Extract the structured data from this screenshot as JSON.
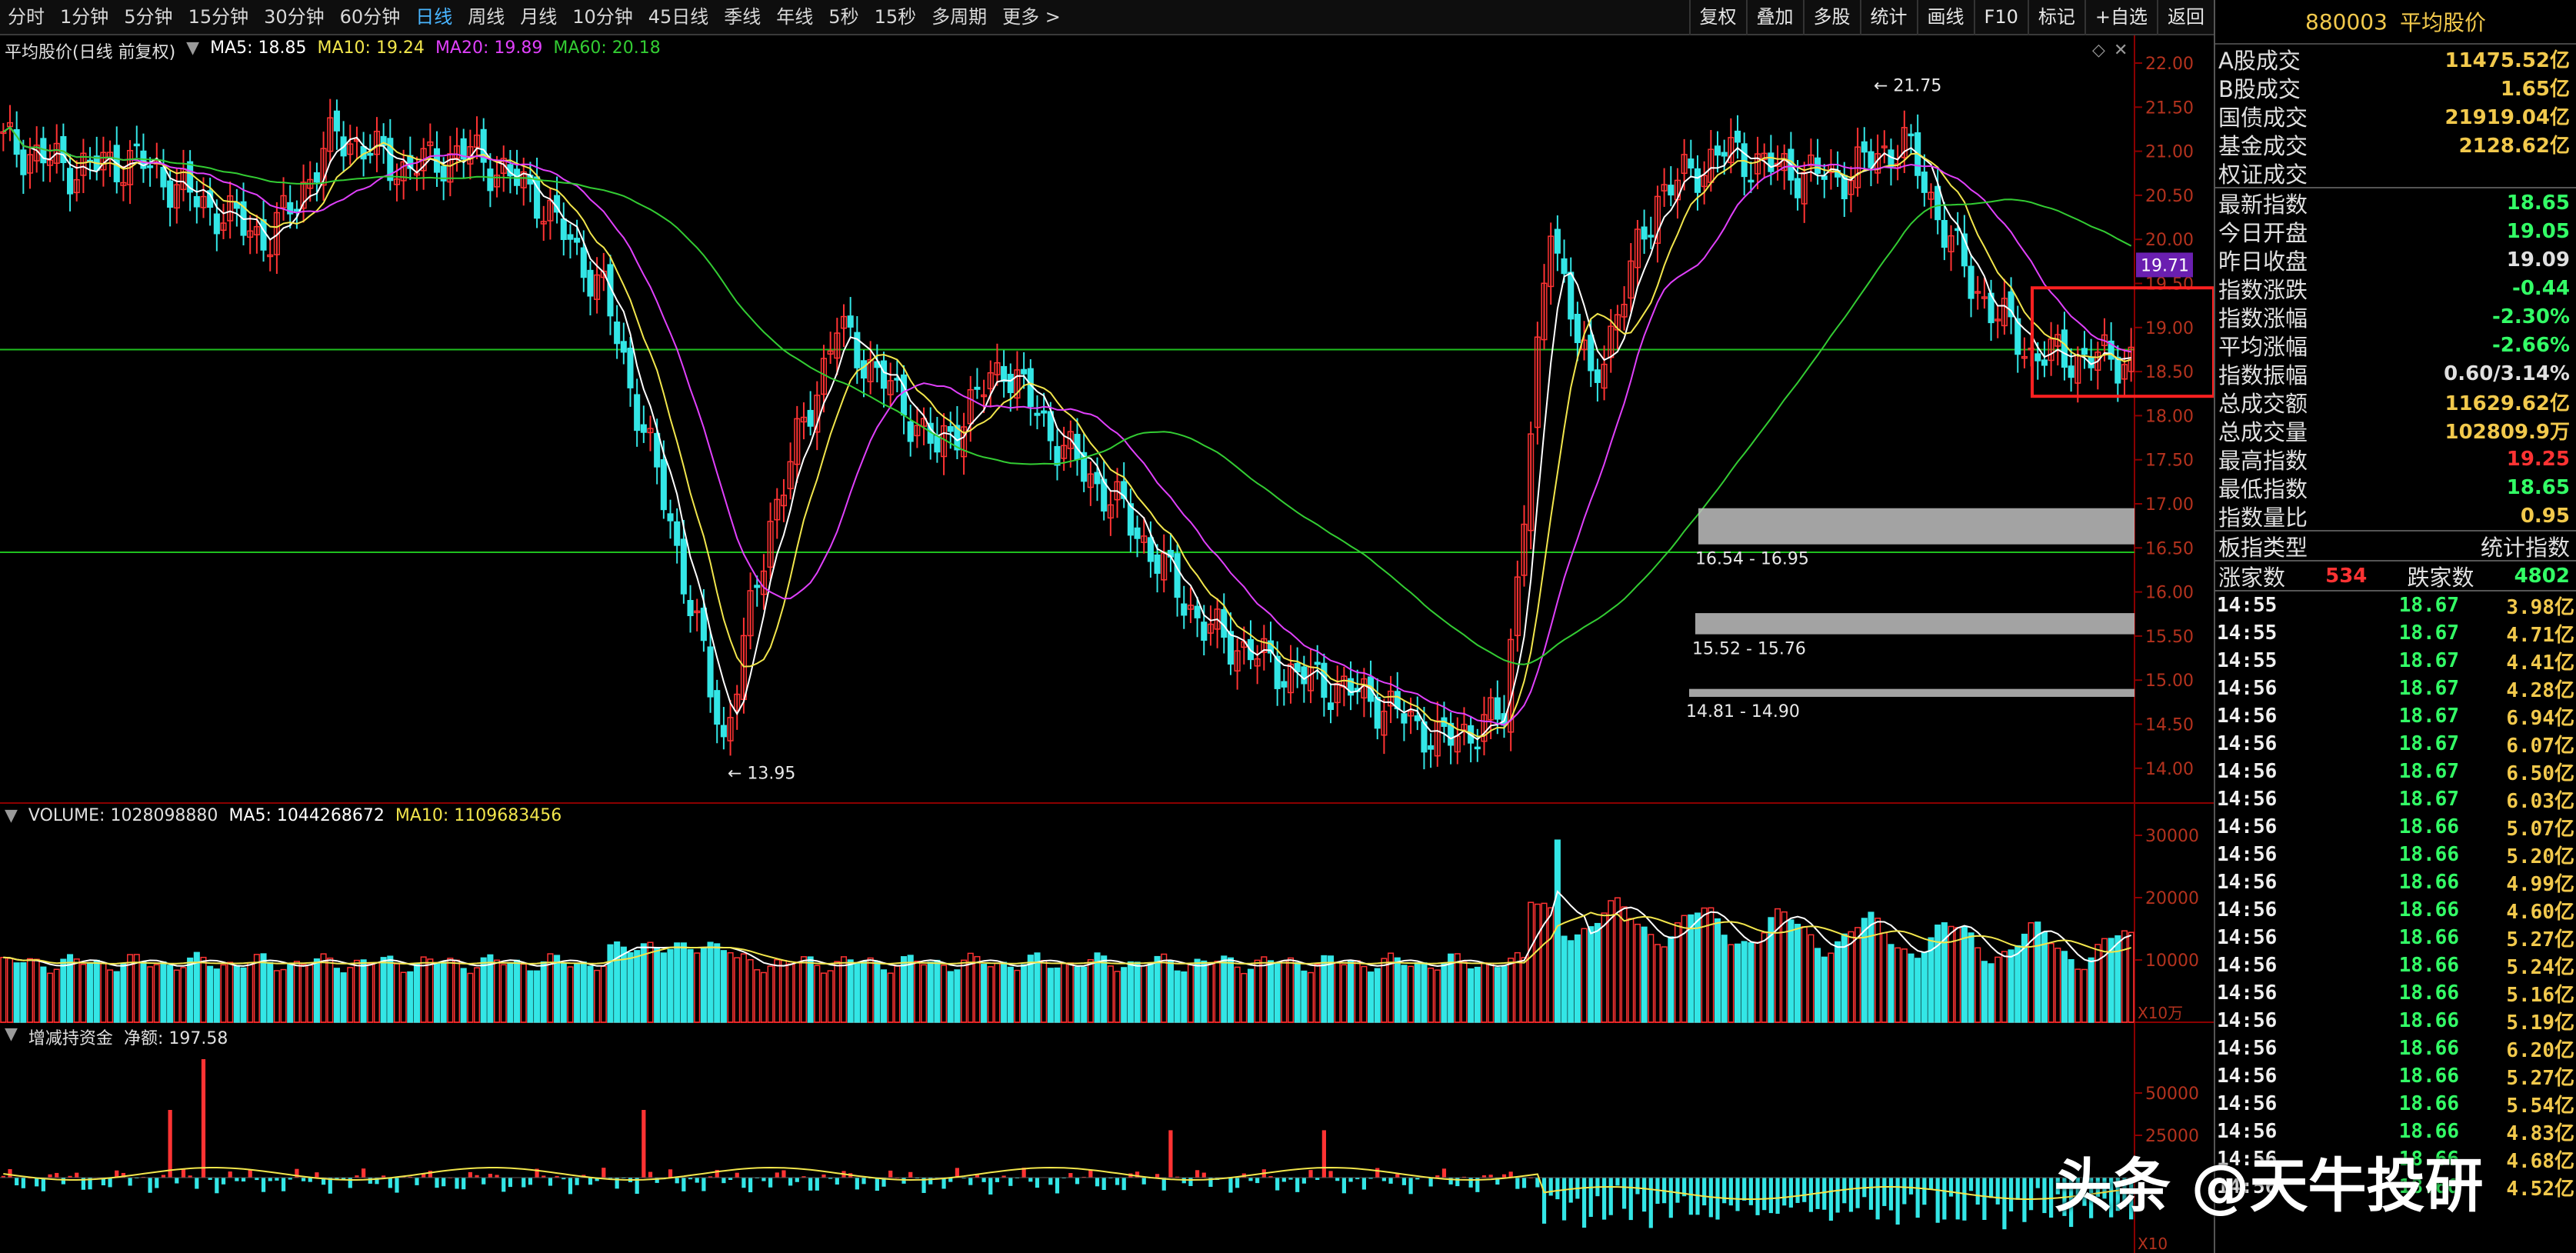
{
  "toolbar": {
    "periods": [
      "分时",
      "1分钟",
      "5分钟",
      "15分钟",
      "30分钟",
      "60分钟",
      "日线",
      "周线",
      "月线",
      "10分钟",
      "45日线",
      "季线",
      "年线",
      "5秒",
      "15秒",
      "多周期",
      "更多 >"
    ],
    "active_period": "日线",
    "right_buttons": [
      "复权",
      "叠加",
      "多股",
      "统计",
      "画线",
      "F10",
      "标记",
      "+自选",
      "返回"
    ]
  },
  "chart": {
    "price_legend": {
      "title": "平均股价(日线 前复权)",
      "ma5": "MA5: 18.85",
      "ma10": "MA10: 19.24",
      "ma20": "MA20: 19.89",
      "ma60": "MA60: 20.18"
    },
    "volume_legend": {
      "volume": "VOLUME: 1028098880",
      "ma5": "MA5: 1044268672",
      "ma10": "MA10: 1109683456"
    },
    "fund_legend": {
      "name": "增减持资金",
      "net": "净额: 197.58"
    },
    "price_axis": [
      "22.00",
      "21.50",
      "21.00",
      "20.50",
      "20.00",
      "19.50",
      "19.00",
      "18.50",
      "18.00",
      "17.50",
      "17.00",
      "16.50",
      "16.00",
      "15.50",
      "15.00",
      "14.50",
      "14.00"
    ],
    "current_price_tag": "19.71",
    "high_label": "21.75",
    "low_label": "13.95",
    "gap_labels": [
      "16.54 - 16.95",
      "15.52 - 15.76",
      "14.81 - 14.90"
    ],
    "volume_axis": [
      "30000",
      "20000",
      "10000"
    ],
    "volume_unit": "X10万",
    "fund_axis": [
      "50000",
      "25000"
    ],
    "fund_unit": "X10",
    "colors": {
      "up": "#ff3333",
      "down": "#33e6e6",
      "ma5": "#ffffff",
      "ma10": "#f2e64c",
      "ma20": "#e040fb",
      "ma60": "#33cc33",
      "grid": "#8b0000",
      "hline": "#1fbf1f"
    }
  },
  "side": {
    "code": "880003",
    "name": "平均股价",
    "stats": [
      {
        "k": "A股成交",
        "v": "11475.52亿",
        "c": "#f2c94c"
      },
      {
        "k": "B股成交",
        "v": "1.65亿",
        "c": "#f2c94c"
      },
      {
        "k": "国债成交",
        "v": "21919.04亿",
        "c": "#f2c94c"
      },
      {
        "k": "基金成交",
        "v": "2128.62亿",
        "c": "#f2c94c"
      },
      {
        "k": "权证成交",
        "v": "",
        "c": "#f2c94c"
      }
    ],
    "index": [
      {
        "k": "最新指数",
        "v": "18.65",
        "c": "#33ff66"
      },
      {
        "k": "今日开盘",
        "v": "19.05",
        "c": "#33ff66"
      },
      {
        "k": "昨日收盘",
        "v": "19.09",
        "c": "#e0e0e0"
      },
      {
        "k": "指数涨跌",
        "v": "-0.44",
        "c": "#33ff66"
      },
      {
        "k": "指数涨幅",
        "v": "-2.30%",
        "c": "#33ff66"
      },
      {
        "k": "平均涨幅",
        "v": "-2.66%",
        "c": "#33ff66"
      },
      {
        "k": "指数振幅",
        "v": "0.60/3.14%",
        "c": "#e0e0e0"
      },
      {
        "k": "总成交额",
        "v": "11629.62亿",
        "c": "#f2c94c"
      },
      {
        "k": "总成交量",
        "v": "102809.9万",
        "c": "#f2c94c"
      },
      {
        "k": "最高指数",
        "v": "19.25",
        "c": "#ff3333"
      },
      {
        "k": "最低指数",
        "v": "18.65",
        "c": "#33ff66"
      },
      {
        "k": "指数量比",
        "v": "0.95",
        "c": "#f2c94c"
      }
    ],
    "board_type": {
      "k": "板指类型",
      "v": "统计指数"
    },
    "breadth": {
      "up_label": "涨家数",
      "up": "534",
      "down_label": "跌家数",
      "down": "4802"
    },
    "ticks": [
      {
        "t": "14:55",
        "p": "18.67",
        "q": "3.98亿"
      },
      {
        "t": "14:55",
        "p": "18.67",
        "q": "4.71亿"
      },
      {
        "t": "14:55",
        "p": "18.67",
        "q": "4.41亿"
      },
      {
        "t": "14:56",
        "p": "18.67",
        "q": "4.28亿"
      },
      {
        "t": "14:56",
        "p": "18.67",
        "q": "6.94亿"
      },
      {
        "t": "14:56",
        "p": "18.67",
        "q": "6.07亿"
      },
      {
        "t": "14:56",
        "p": "18.67",
        "q": "6.50亿"
      },
      {
        "t": "14:56",
        "p": "18.67",
        "q": "6.03亿"
      },
      {
        "t": "14:56",
        "p": "18.66",
        "q": "5.07亿"
      },
      {
        "t": "14:56",
        "p": "18.66",
        "q": "5.20亿"
      },
      {
        "t": "14:56",
        "p": "18.66",
        "q": "4.99亿"
      },
      {
        "t": "14:56",
        "p": "18.66",
        "q": "4.60亿"
      },
      {
        "t": "14:56",
        "p": "18.66",
        "q": "5.27亿"
      },
      {
        "t": "14:56",
        "p": "18.66",
        "q": "5.24亿"
      },
      {
        "t": "14:56",
        "p": "18.66",
        "q": "5.16亿"
      },
      {
        "t": "14:56",
        "p": "18.66",
        "q": "5.19亿"
      },
      {
        "t": "14:56",
        "p": "18.66",
        "q": "6.20亿"
      },
      {
        "t": "14:56",
        "p": "18.66",
        "q": "5.27亿"
      },
      {
        "t": "14:56",
        "p": "18.66",
        "q": "5.54亿"
      },
      {
        "t": "14:56",
        "p": "18.66",
        "q": "4.83亿"
      },
      {
        "t": "14:56",
        "p": "18.66",
        "q": "4.68亿"
      },
      {
        "t": "14:56",
        "p": "18.66",
        "q": "4.52亿"
      }
    ]
  },
  "watermark": "头条 @天牛投研"
}
